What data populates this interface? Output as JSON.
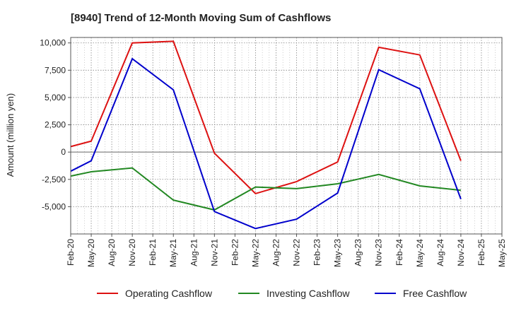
{
  "chart_data": {
    "type": "line",
    "title": "[8940]  Trend of 12-Month Moving Sum of Cashflows",
    "xlabel": "",
    "ylabel": "Amount (million yen)",
    "categories": [
      "Feb-20",
      "May-20",
      "Aug-20",
      "Nov-20",
      "Feb-21",
      "May-21",
      "Aug-21",
      "Nov-21",
      "Feb-22",
      "May-22",
      "Aug-22",
      "Nov-22",
      "Feb-23",
      "May-23",
      "Aug-23",
      "Nov-23",
      "Feb-24",
      "May-24",
      "Aug-24",
      "Nov-24",
      "Feb-25",
      "May-25"
    ],
    "ylim": [
      -7500,
      10500
    ],
    "yticks": [
      10000,
      7500,
      5000,
      2500,
      0,
      -2500,
      -5000
    ],
    "ytick_labels": [
      "10,000",
      "7,500",
      "5,000",
      "2,500",
      "0",
      "-2,500",
      "-5,000"
    ],
    "grid": true,
    "legend": "bottom",
    "series": [
      {
        "name": "Operating Cashflow",
        "color": "#dd1111",
        "values": [
          500,
          1000,
          null,
          10000,
          null,
          10150,
          null,
          -100,
          null,
          -3800,
          null,
          -2700,
          null,
          -900,
          null,
          9600,
          null,
          8900,
          null,
          -800,
          null,
          null
        ]
      },
      {
        "name": "Investing Cashflow",
        "color": "#228822",
        "values": [
          -2200,
          -1800,
          null,
          -1450,
          null,
          -4400,
          null,
          -5300,
          null,
          -3200,
          null,
          -3350,
          null,
          -2900,
          null,
          -2050,
          null,
          -3100,
          null,
          -3500,
          null,
          null
        ]
      },
      {
        "name": "Free Cashflow",
        "color": "#0000cc",
        "values": [
          -1750,
          -800,
          null,
          8550,
          null,
          5700,
          null,
          -5450,
          null,
          -7000,
          null,
          -6150,
          null,
          -3750,
          null,
          7550,
          null,
          5800,
          null,
          -4300,
          null,
          null
        ]
      }
    ]
  }
}
